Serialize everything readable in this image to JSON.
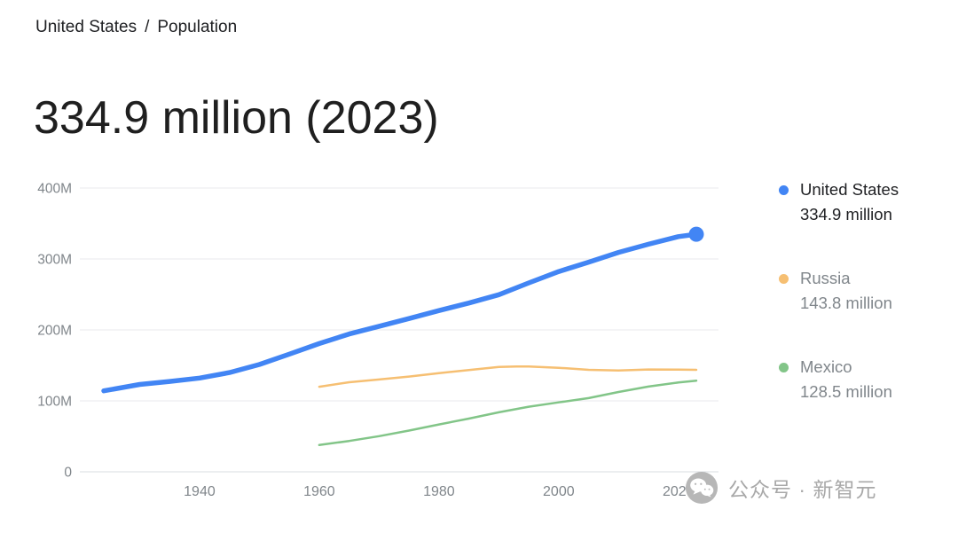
{
  "breadcrumb": {
    "primary": "United States",
    "separator": "/",
    "secondary": "Population"
  },
  "headline": "334.9 million (2023)",
  "legend": [
    {
      "name": "United States",
      "value": "334.9 million",
      "color": "#4285f4",
      "muted": false
    },
    {
      "name": "Russia",
      "value": "143.8 million",
      "color": "#f6bf72",
      "muted": true
    },
    {
      "name": "Mexico",
      "value": "128.5 million",
      "color": "#82c588",
      "muted": true
    }
  ],
  "watermark": {
    "icon": "wechat-icon",
    "text": "公众号 · 新智元"
  },
  "chart_data": {
    "type": "line",
    "title": "334.9 million (2023)",
    "xlabel": "",
    "ylabel": "",
    "xlim": [
      1920,
      2026.7
    ],
    "ylim": [
      0,
      400
    ],
    "grid": "horizontal",
    "legend_position": "right",
    "x_ticks": [
      1940,
      1960,
      1980,
      2000,
      2020
    ],
    "y_ticks": [
      {
        "value": 0,
        "label": "0"
      },
      {
        "value": 100,
        "label": "100M"
      },
      {
        "value": 200,
        "label": "200M"
      },
      {
        "value": 300,
        "label": "300M"
      },
      {
        "value": 400,
        "label": "400M"
      }
    ],
    "y_unit": "millions",
    "series": [
      {
        "name": "United States",
        "color": "#4285f4",
        "width": 5.5,
        "end_dot": true,
        "x": [
          1924,
          1930,
          1935,
          1940,
          1945,
          1950,
          1955,
          1960,
          1965,
          1970,
          1975,
          1980,
          1985,
          1990,
          1995,
          2000,
          2005,
          2010,
          2015,
          2020,
          2023
        ],
        "y": [
          114.1,
          123.1,
          127.4,
          132.1,
          139.9,
          151.3,
          165.9,
          180.7,
          194.3,
          205.1,
          216.0,
          227.2,
          237.9,
          249.6,
          266.3,
          282.2,
          295.5,
          309.3,
          320.7,
          331.5,
          334.9
        ]
      },
      {
        "name": "Russia",
        "color": "#f6bf72",
        "width": 2.5,
        "end_dot": false,
        "x": [
          1960,
          1965,
          1970,
          1975,
          1980,
          1985,
          1990,
          1993,
          1995,
          2000,
          2005,
          2010,
          2015,
          2020,
          2023
        ],
        "y": [
          119.9,
          126.3,
          130.1,
          134.2,
          139.0,
          143.5,
          147.7,
          148.5,
          148.4,
          146.6,
          143.8,
          142.9,
          144.3,
          144.1,
          143.8
        ]
      },
      {
        "name": "Mexico",
        "color": "#82c588",
        "width": 2.5,
        "end_dot": false,
        "x": [
          1960,
          1965,
          1970,
          1975,
          1980,
          1985,
          1990,
          1995,
          2000,
          2005,
          2010,
          2015,
          2020,
          2023
        ],
        "y": [
          37.8,
          43.5,
          50.3,
          58.1,
          66.8,
          75.0,
          83.9,
          91.7,
          97.9,
          103.9,
          112.5,
          120.1,
          125.9,
          128.5
        ]
      }
    ]
  }
}
